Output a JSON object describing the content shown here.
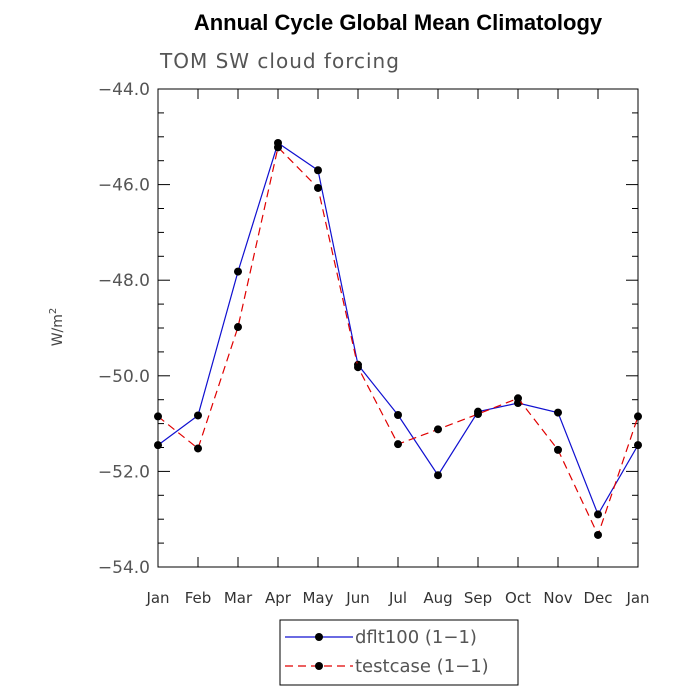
{
  "chart_data": {
    "type": "line",
    "title": "Annual Cycle Global Mean Climatology",
    "subtitle": "TOM SW cloud forcing",
    "ylabel": "W/m",
    "ylabel_sup": "2",
    "xlabel": "",
    "categories": [
      "Jan",
      "Feb",
      "Mar",
      "Apr",
      "May",
      "Jun",
      "Jul",
      "Aug",
      "Sep",
      "Oct",
      "Nov",
      "Dec",
      "Jan"
    ],
    "ylim": [
      -54.0,
      -44.0
    ],
    "yticks": [
      -54.0,
      -52.0,
      -50.0,
      -48.0,
      -46.0,
      -44.0
    ],
    "ytick_labels": [
      "−54.0",
      "−52.0",
      "−50.0",
      "−48.0",
      "−46.0",
      "−44.0"
    ],
    "series": [
      {
        "name": "dflt100 (1−1)",
        "color": "#1010d0",
        "dash": "solid",
        "values": [
          -51.45,
          -50.83,
          -47.82,
          -45.13,
          -45.7,
          -49.77,
          -50.82,
          -52.08,
          -50.75,
          -50.57,
          -50.77,
          -52.9,
          -51.45
        ]
      },
      {
        "name": "testcase (1−1)",
        "color": "#e00000",
        "dash": "dashed",
        "values": [
          -50.85,
          -51.52,
          -48.98,
          -45.22,
          -46.07,
          -49.82,
          -51.43,
          -51.12,
          -50.8,
          -50.47,
          -51.55,
          -53.33,
          -50.85
        ]
      }
    ],
    "grid": false,
    "legend_position": "bottom-center"
  }
}
